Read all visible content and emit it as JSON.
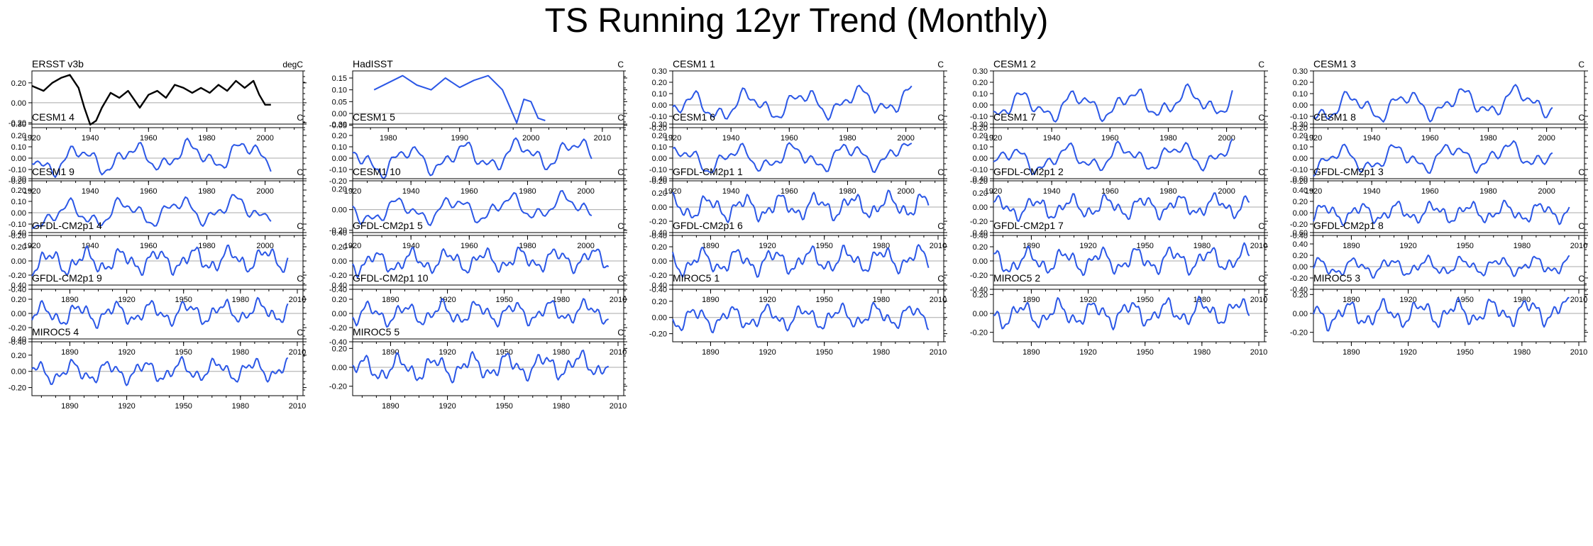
{
  "page_title": "TS Running 12yr Trend (Monthly)",
  "colors": {
    "obs": "#000000",
    "model": "#2b57e6",
    "zero_line": "#a8a8a8",
    "axis": "#000000"
  },
  "chart_data": [
    {
      "type": "line",
      "title": "ERSST v3b",
      "units": "degC",
      "color": "#000000",
      "stroke_width": 2.4,
      "x_range": [
        1920,
        2013
      ],
      "x_ticks": [
        1920,
        1940,
        1960,
        1980,
        2000
      ],
      "y_range": [
        -0.25,
        0.32
      ],
      "y_ticks": [
        "0.20",
        "0.00",
        "-0.20"
      ],
      "line_start": 1920,
      "line_end": 2002,
      "points": [
        [
          1920,
          0.17
        ],
        [
          1924,
          0.12
        ],
        [
          1927,
          0.2
        ],
        [
          1930,
          0.25
        ],
        [
          1933,
          0.28
        ],
        [
          1936,
          0.15
        ],
        [
          1938,
          -0.05
        ],
        [
          1940,
          -0.22
        ],
        [
          1942,
          -0.18
        ],
        [
          1944,
          -0.05
        ],
        [
          1947,
          0.1
        ],
        [
          1950,
          0.05
        ],
        [
          1953,
          0.12
        ],
        [
          1957,
          -0.05
        ],
        [
          1960,
          0.08
        ],
        [
          1963,
          0.12
        ],
        [
          1966,
          0.05
        ],
        [
          1969,
          0.18
        ],
        [
          1972,
          0.15
        ],
        [
          1975,
          0.1
        ],
        [
          1978,
          0.15
        ],
        [
          1981,
          0.1
        ],
        [
          1984,
          0.18
        ],
        [
          1987,
          0.12
        ],
        [
          1990,
          0.22
        ],
        [
          1993,
          0.15
        ],
        [
          1996,
          0.22
        ],
        [
          1998,
          0.08
        ],
        [
          2000,
          -0.02
        ],
        [
          2002,
          -0.02
        ]
      ]
    },
    {
      "type": "line",
      "title": "HadISST",
      "units": "C",
      "color": "#2b57e6",
      "stroke_width": 2,
      "x_range": [
        1975,
        2013
      ],
      "x_ticks": [
        1980,
        1990,
        2000,
        2010
      ],
      "y_range": [
        -0.06,
        0.18
      ],
      "y_ticks": [
        "0.15",
        "0.10",
        "0.05",
        "0.00",
        "-0.05"
      ],
      "line_start": 1978,
      "line_end": 2002,
      "points": [
        [
          1978,
          0.1
        ],
        [
          1980,
          0.13
        ],
        [
          1982,
          0.16
        ],
        [
          1984,
          0.12
        ],
        [
          1986,
          0.1
        ],
        [
          1988,
          0.15
        ],
        [
          1990,
          0.11
        ],
        [
          1992,
          0.14
        ],
        [
          1994,
          0.16
        ],
        [
          1996,
          0.1
        ],
        [
          1998,
          -0.04
        ],
        [
          1999,
          0.06
        ],
        [
          2000,
          0.05
        ],
        [
          2001,
          -0.02
        ],
        [
          2002,
          -0.03
        ]
      ]
    },
    {
      "type": "line",
      "title": "CESM1 1",
      "units": "C",
      "color": "#2b57e6",
      "stroke_width": 2,
      "x_range": [
        1920,
        2013
      ],
      "x_ticks": [
        1920,
        1940,
        1960,
        1980,
        2000
      ],
      "y_range": [
        -0.2,
        0.3
      ],
      "y_ticks": [
        "0.30",
        "0.20",
        "0.10",
        "0.00",
        "-0.10",
        "-0.20"
      ],
      "line_start": 1920,
      "line_end": 2002,
      "seed": 11,
      "amp": 0.16,
      "trend": 0.08
    },
    {
      "type": "line",
      "title": "CESM1 2",
      "units": "C",
      "color": "#2b57e6",
      "stroke_width": 2,
      "x_range": [
        1920,
        2013
      ],
      "x_ticks": [
        1920,
        1940,
        1960,
        1980,
        2000
      ],
      "y_range": [
        -0.2,
        0.3
      ],
      "y_ticks": [
        "0.30",
        "0.20",
        "0.10",
        "0.00",
        "-0.10",
        "-0.20"
      ],
      "line_start": 1920,
      "line_end": 2002,
      "seed": 12,
      "amp": 0.16,
      "trend": 0.06
    },
    {
      "type": "line",
      "title": "CESM1 3",
      "units": "C",
      "color": "#2b57e6",
      "stroke_width": 2,
      "x_range": [
        1920,
        2013
      ],
      "x_ticks": [
        1920,
        1940,
        1960,
        1980,
        2000
      ],
      "y_range": [
        -0.2,
        0.3
      ],
      "y_ticks": [
        "0.30",
        "0.20",
        "0.10",
        "0.00",
        "-0.10",
        "-0.20"
      ],
      "line_start": 1920,
      "line_end": 2002,
      "seed": 13,
      "amp": 0.16,
      "trend": 0.07
    },
    {
      "type": "line",
      "title": "CESM1 4",
      "units": "C",
      "color": "#2b57e6",
      "stroke_width": 2,
      "x_range": [
        1920,
        2013
      ],
      "x_ticks": [
        1920,
        1940,
        1960,
        1980,
        2000
      ],
      "y_range": [
        -0.2,
        0.3
      ],
      "y_ticks": [
        "0.30",
        "0.20",
        "0.10",
        "0.00",
        "-0.10",
        "-0.20"
      ],
      "line_start": 1920,
      "line_end": 2002,
      "seed": 14,
      "amp": 0.16,
      "trend": 0.07
    },
    {
      "type": "line",
      "title": "CESM1 5",
      "units": "C",
      "color": "#2b57e6",
      "stroke_width": 2,
      "x_range": [
        1920,
        2013
      ],
      "x_ticks": [
        1920,
        1940,
        1960,
        1980,
        2000
      ],
      "y_range": [
        -0.2,
        0.3
      ],
      "y_ticks": [
        "0.30",
        "0.20",
        "0.10",
        "0.00",
        "-0.10",
        "-0.20"
      ],
      "line_start": 1920,
      "line_end": 2002,
      "seed": 15,
      "amp": 0.16,
      "trend": 0.09
    },
    {
      "type": "line",
      "title": "CESM1 6",
      "units": "C",
      "color": "#2b57e6",
      "stroke_width": 2,
      "x_range": [
        1920,
        2013
      ],
      "x_ticks": [
        1920,
        1940,
        1960,
        1980,
        2000
      ],
      "y_range": [
        -0.2,
        0.3
      ],
      "y_ticks": [
        "0.30",
        "0.20",
        "0.10",
        "0.00",
        "-0.10",
        "-0.20"
      ],
      "line_start": 1920,
      "line_end": 2002,
      "seed": 16,
      "amp": 0.15,
      "trend": 0.05
    },
    {
      "type": "line",
      "title": "CESM1 7",
      "units": "C",
      "color": "#2b57e6",
      "stroke_width": 2,
      "x_range": [
        1920,
        2013
      ],
      "x_ticks": [
        1920,
        1940,
        1960,
        1980,
        2000
      ],
      "y_range": [
        -0.2,
        0.3
      ],
      "y_ticks": [
        "0.30",
        "0.20",
        "0.10",
        "0.00",
        "-0.10",
        "-0.20"
      ],
      "line_start": 1920,
      "line_end": 2002,
      "seed": 17,
      "amp": 0.15,
      "trend": 0.06
    },
    {
      "type": "line",
      "title": "CESM1 8",
      "units": "C",
      "color": "#2b57e6",
      "stroke_width": 2,
      "x_range": [
        1920,
        2013
      ],
      "x_ticks": [
        1920,
        1940,
        1960,
        1980,
        2000
      ],
      "y_range": [
        -0.2,
        0.3
      ],
      "y_ticks": [
        "0.30",
        "0.20",
        "0.10",
        "0.00",
        "-0.10",
        "-0.20"
      ],
      "line_start": 1920,
      "line_end": 2002,
      "seed": 18,
      "amp": 0.15,
      "trend": 0.06
    },
    {
      "type": "line",
      "title": "CESM1 9",
      "units": "C",
      "color": "#2b57e6",
      "stroke_width": 2,
      "x_range": [
        1920,
        2013
      ],
      "x_ticks": [
        1920,
        1940,
        1960,
        1980,
        2000
      ],
      "y_range": [
        -0.2,
        0.3
      ],
      "y_ticks": [
        "0.30",
        "0.20",
        "0.10",
        "0.00",
        "-0.10",
        "-0.20"
      ],
      "line_start": 1920,
      "line_end": 2002,
      "seed": 19,
      "amp": 0.15,
      "trend": 0.07
    },
    {
      "type": "line",
      "title": "CESM1 10",
      "units": "C",
      "color": "#2b57e6",
      "stroke_width": 2,
      "x_range": [
        1920,
        2013
      ],
      "x_ticks": [
        1920,
        1940,
        1960,
        1980,
        2000
      ],
      "y_range": [
        -0.25,
        0.3
      ],
      "y_ticks": [
        "0.20",
        "0.00",
        "-0.20"
      ],
      "line_start": 1920,
      "line_end": 2002,
      "seed": 20,
      "amp": 0.16,
      "trend": 0.06
    },
    {
      "type": "line",
      "title": "GFDL-CM2p1 1",
      "units": "C",
      "color": "#2b57e6",
      "stroke_width": 2,
      "x_range": [
        1870,
        2013
      ],
      "x_ticks": [
        1890,
        1920,
        1950,
        1980,
        2010
      ],
      "y_range": [
        -0.4,
        0.4
      ],
      "y_ticks": [
        "0.40",
        "0.20",
        "0.00",
        "-0.20",
        "-0.40"
      ],
      "line_start": 1870,
      "line_end": 2005,
      "seed": 21,
      "amp": 0.22,
      "trend": 0.04
    },
    {
      "type": "line",
      "title": "GFDL-CM2p1 2",
      "units": "C",
      "color": "#2b57e6",
      "stroke_width": 2,
      "x_range": [
        1870,
        2013
      ],
      "x_ticks": [
        1890,
        1920,
        1950,
        1980,
        2010
      ],
      "y_range": [
        -0.4,
        0.4
      ],
      "y_ticks": [
        "0.40",
        "0.20",
        "0.00",
        "-0.20",
        "-0.40"
      ],
      "line_start": 1870,
      "line_end": 2005,
      "seed": 22,
      "amp": 0.2,
      "trend": 0.04
    },
    {
      "type": "line",
      "title": "GFDL-CM2p1 3",
      "units": "C",
      "color": "#2b57e6",
      "stroke_width": 2,
      "x_range": [
        1870,
        2013
      ],
      "x_ticks": [
        1890,
        1920,
        1950,
        1980,
        2010
      ],
      "y_range": [
        -0.4,
        0.6
      ],
      "y_ticks": [
        "0.60",
        "0.40",
        "0.20",
        "0.00",
        "-0.20",
        "-0.40"
      ],
      "line_start": 1870,
      "line_end": 2005,
      "seed": 23,
      "amp": 0.22,
      "trend": 0.03
    },
    {
      "type": "line",
      "title": "GFDL-CM2p1 4",
      "units": "C",
      "color": "#2b57e6",
      "stroke_width": 2,
      "x_range": [
        1870,
        2013
      ],
      "x_ticks": [
        1890,
        1920,
        1950,
        1980,
        2010
      ],
      "y_range": [
        -0.4,
        0.4
      ],
      "y_ticks": [
        "0.40",
        "0.20",
        "0.00",
        "-0.20",
        "-0.40"
      ],
      "line_start": 1870,
      "line_end": 2005,
      "seed": 24,
      "amp": 0.22,
      "trend": 0.05
    },
    {
      "type": "line",
      "title": "GFDL-CM2p1 5",
      "units": "C",
      "color": "#2b57e6",
      "stroke_width": 2,
      "x_range": [
        1870,
        2013
      ],
      "x_ticks": [
        1890,
        1920,
        1950,
        1980,
        2010
      ],
      "y_range": [
        -0.4,
        0.4
      ],
      "y_ticks": [
        "0.40",
        "0.20",
        "0.00",
        "-0.20",
        "-0.40"
      ],
      "line_start": 1870,
      "line_end": 2005,
      "seed": 25,
      "amp": 0.2,
      "trend": 0.05
    },
    {
      "type": "line",
      "title": "GFDL-CM2p1 6",
      "units": "C",
      "color": "#2b57e6",
      "stroke_width": 2,
      "x_range": [
        1870,
        2013
      ],
      "x_ticks": [
        1890,
        1920,
        1950,
        1980,
        2010
      ],
      "y_range": [
        -0.4,
        0.4
      ],
      "y_ticks": [
        "0.40",
        "0.20",
        "0.00",
        "-0.20",
        "-0.40"
      ],
      "line_start": 1870,
      "line_end": 2005,
      "seed": 26,
      "amp": 0.22,
      "trend": 0.05
    },
    {
      "type": "line",
      "title": "GFDL-CM2p1 7",
      "units": "C",
      "color": "#2b57e6",
      "stroke_width": 2,
      "x_range": [
        1870,
        2013
      ],
      "x_ticks": [
        1890,
        1920,
        1950,
        1980,
        2010
      ],
      "y_range": [
        -0.4,
        0.4
      ],
      "y_ticks": [
        "0.40",
        "0.20",
        "0.00",
        "-0.20",
        "-0.40"
      ],
      "line_start": 1870,
      "line_end": 2005,
      "seed": 27,
      "amp": 0.22,
      "trend": 0.04
    },
    {
      "type": "line",
      "title": "GFDL-CM2p1 8",
      "units": "C",
      "color": "#2b57e6",
      "stroke_width": 2,
      "x_range": [
        1870,
        2013
      ],
      "x_ticks": [
        1890,
        1920,
        1950,
        1980,
        2010
      ],
      "y_range": [
        -0.4,
        0.6
      ],
      "y_ticks": [
        "0.60",
        "0.40",
        "0.20",
        "0.00",
        "-0.20",
        "-0.40"
      ],
      "line_start": 1870,
      "line_end": 2005,
      "seed": 28,
      "amp": 0.2,
      "trend": 0.04
    },
    {
      "type": "line",
      "title": "GFDL-CM2p1 9",
      "units": "C",
      "color": "#2b57e6",
      "stroke_width": 2,
      "x_range": [
        1870,
        2013
      ],
      "x_ticks": [
        1890,
        1920,
        1950,
        1980,
        2010
      ],
      "y_range": [
        -0.4,
        0.4
      ],
      "y_ticks": [
        "0.40",
        "0.20",
        "0.00",
        "-0.20",
        "-0.40"
      ],
      "line_start": 1870,
      "line_end": 2005,
      "seed": 29,
      "amp": 0.2,
      "trend": 0.05
    },
    {
      "type": "line",
      "title": "GFDL-CM2p1 10",
      "units": "C",
      "color": "#2b57e6",
      "stroke_width": 2,
      "x_range": [
        1870,
        2013
      ],
      "x_ticks": [
        1890,
        1920,
        1950,
        1980,
        2010
      ],
      "y_range": [
        -0.4,
        0.4
      ],
      "y_ticks": [
        "0.40",
        "0.20",
        "0.00",
        "-0.20",
        "-0.40"
      ],
      "line_start": 1870,
      "line_end": 2005,
      "seed": 30,
      "amp": 0.2,
      "trend": 0.04
    },
    {
      "type": "line",
      "title": "MIROC5 1",
      "units": "C",
      "color": "#2b57e6",
      "stroke_width": 2,
      "x_range": [
        1870,
        2013
      ],
      "x_ticks": [
        1890,
        1920,
        1950,
        1980,
        2010
      ],
      "y_range": [
        -0.3,
        0.4
      ],
      "y_ticks": [
        "0.40",
        "0.20",
        "0.00",
        "-0.20"
      ],
      "line_start": 1870,
      "line_end": 2005,
      "seed": 31,
      "amp": 0.18,
      "trend": 0.04
    },
    {
      "type": "line",
      "title": "MIROC5 2",
      "units": "C",
      "color": "#2b57e6",
      "stroke_width": 2,
      "x_range": [
        1870,
        2013
      ],
      "x_ticks": [
        1890,
        1920,
        1950,
        1980,
        2010
      ],
      "y_range": [
        -0.3,
        0.3
      ],
      "y_ticks": [
        "0.20",
        "0.00",
        "-0.20"
      ],
      "line_start": 1870,
      "line_end": 2005,
      "seed": 32,
      "amp": 0.17,
      "trend": 0.04
    },
    {
      "type": "line",
      "title": "MIROC5 3",
      "units": "C",
      "color": "#2b57e6",
      "stroke_width": 2,
      "x_range": [
        1870,
        2013
      ],
      "x_ticks": [
        1890,
        1920,
        1950,
        1980,
        2010
      ],
      "y_range": [
        -0.3,
        0.3
      ],
      "y_ticks": [
        "0.20",
        "0.00",
        "-0.20"
      ],
      "line_start": 1870,
      "line_end": 2005,
      "seed": 33,
      "amp": 0.17,
      "trend": 0.05
    },
    {
      "type": "line",
      "title": "MIROC5 4",
      "units": "C",
      "color": "#2b57e6",
      "stroke_width": 2,
      "x_range": [
        1870,
        2013
      ],
      "x_ticks": [
        1890,
        1920,
        1950,
        1980,
        2010
      ],
      "y_range": [
        -0.3,
        0.4
      ],
      "y_ticks": [
        "0.40",
        "0.20",
        "0.00",
        "-0.20"
      ],
      "line_start": 1870,
      "line_end": 2005,
      "seed": 34,
      "amp": 0.17,
      "trend": 0.04
    },
    {
      "type": "line",
      "title": "MIROC5 5",
      "units": "C",
      "color": "#2b57e6",
      "stroke_width": 2,
      "x_range": [
        1870,
        2013
      ],
      "x_ticks": [
        1890,
        1920,
        1950,
        1980,
        2010
      ],
      "y_range": [
        -0.3,
        0.3
      ],
      "y_ticks": [
        "0.20",
        "0.00",
        "-0.20"
      ],
      "line_start": 1870,
      "line_end": 2005,
      "seed": 35,
      "amp": 0.17,
      "trend": 0.05
    }
  ]
}
